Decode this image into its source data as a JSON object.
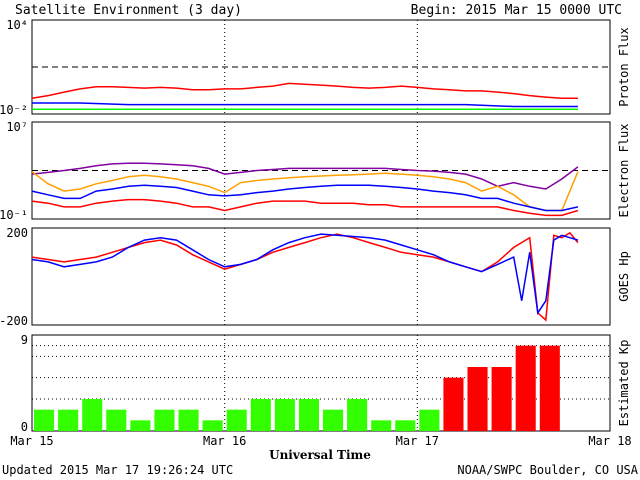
{
  "header": {
    "title": "Satellite Environment (3 day)",
    "begin": "Begin:  2015 Mar 15 0000 UTC"
  },
  "footer": {
    "updated": "Updated 2015 Mar 17 19:26:24 UTC",
    "credit": "NOAA/SWPC Boulder, CO USA"
  },
  "x_axis": {
    "label": "Universal Time",
    "ticks": [
      "Mar 15",
      "Mar 16",
      "Mar 17",
      "Mar 18"
    ]
  },
  "colors": {
    "red": "#ff0000",
    "blue": "#0000ff",
    "green": "#00ff00",
    "purple": "#8000a0",
    "orange": "#ffa000",
    "kp_green": "#33ff00",
    "kp_red": "#ff0000"
  },
  "chart_data": [
    {
      "type": "line",
      "ylabel": "Proton Flux",
      "ytick_labels": [
        "10⁴",
        "10⁻²"
      ],
      "yscale": "log",
      "ylim": [
        0.01,
        10000
      ],
      "threshold": 10,
      "xlim": [
        0,
        72
      ],
      "series": [
        {
          "color": "red",
          "x": [
            0,
            2,
            4,
            6,
            8,
            10,
            12,
            14,
            16,
            18,
            20,
            22,
            24,
            26,
            28,
            30,
            32,
            34,
            36,
            38,
            40,
            42,
            44,
            46,
            48,
            50,
            52,
            54,
            56,
            58,
            60,
            62,
            64,
            66,
            68
          ],
          "values": [
            0.1,
            0.15,
            0.25,
            0.4,
            0.55,
            0.55,
            0.5,
            0.45,
            0.5,
            0.45,
            0.35,
            0.35,
            0.4,
            0.4,
            0.5,
            0.6,
            0.9,
            0.8,
            0.7,
            0.6,
            0.5,
            0.45,
            0.5,
            0.6,
            0.5,
            0.4,
            0.35,
            0.3,
            0.3,
            0.25,
            0.2,
            0.15,
            0.12,
            0.1,
            0.1
          ]
        },
        {
          "color": "blue",
          "x": [
            0,
            6,
            12,
            18,
            24,
            30,
            36,
            42,
            48,
            54,
            60,
            66,
            68
          ],
          "values": [
            0.05,
            0.05,
            0.04,
            0.04,
            0.04,
            0.04,
            0.04,
            0.04,
            0.04,
            0.04,
            0.03,
            0.03,
            0.03
          ]
        },
        {
          "color": "green",
          "x": [
            0,
            6,
            12,
            18,
            24,
            30,
            36,
            42,
            48,
            54,
            60,
            66,
            68
          ],
          "values": [
            0.02,
            0.02,
            0.02,
            0.02,
            0.02,
            0.02,
            0.02,
            0.02,
            0.02,
            0.02,
            0.02,
            0.02,
            0.02
          ]
        }
      ]
    },
    {
      "type": "line",
      "ylabel": "Electron Flux",
      "ytick_labels": [
        "10⁷",
        "10⁻¹"
      ],
      "yscale": "log",
      "ylim": [
        0.1,
        10000000
      ],
      "threshold": 1000,
      "xlim": [
        0,
        72
      ],
      "series": [
        {
          "color": "purple",
          "x": [
            0,
            2,
            4,
            6,
            8,
            10,
            12,
            14,
            16,
            18,
            20,
            22,
            24,
            26,
            28,
            30,
            32,
            34,
            36,
            38,
            40,
            42,
            44,
            46,
            48,
            50,
            52,
            54,
            56,
            58,
            60,
            62,
            64,
            66,
            68
          ],
          "values": [
            500,
            700,
            1000,
            1500,
            2500,
            3500,
            4000,
            4000,
            3500,
            3000,
            2500,
            1500,
            500,
            700,
            1000,
            1200,
            1500,
            1500,
            1500,
            1500,
            1500,
            1500,
            1500,
            1200,
            1000,
            900,
            700,
            500,
            200,
            50,
            100,
            50,
            30,
            200,
            2000
          ]
        },
        {
          "color": "orange",
          "x": [
            0,
            2,
            4,
            6,
            8,
            10,
            12,
            14,
            16,
            18,
            20,
            22,
            24,
            26,
            28,
            30,
            32,
            34,
            36,
            38,
            40,
            42,
            44,
            46,
            48,
            50,
            52,
            54,
            56,
            58,
            60,
            62,
            64,
            66,
            68
          ],
          "values": [
            800,
            80,
            20,
            30,
            80,
            150,
            300,
            400,
            300,
            200,
            100,
            50,
            15,
            100,
            150,
            200,
            250,
            300,
            350,
            400,
            450,
            500,
            600,
            500,
            400,
            300,
            200,
            100,
            20,
            50,
            10,
            1,
            0.5,
            0.5,
            800
          ]
        },
        {
          "color": "blue",
          "x": [
            0,
            2,
            4,
            6,
            8,
            10,
            12,
            14,
            16,
            18,
            20,
            22,
            24,
            26,
            28,
            30,
            32,
            34,
            36,
            38,
            40,
            42,
            44,
            46,
            48,
            50,
            52,
            54,
            56,
            58,
            60,
            62,
            64,
            66,
            68
          ],
          "values": [
            20,
            10,
            5,
            5,
            20,
            30,
            50,
            60,
            50,
            40,
            20,
            10,
            8,
            10,
            15,
            20,
            30,
            40,
            50,
            60,
            60,
            60,
            50,
            40,
            30,
            20,
            15,
            10,
            5,
            5,
            2,
            1,
            0.5,
            0.5,
            1
          ]
        },
        {
          "color": "red",
          "x": [
            0,
            2,
            4,
            6,
            8,
            10,
            12,
            14,
            16,
            18,
            20,
            22,
            24,
            26,
            28,
            30,
            32,
            34,
            36,
            38,
            40,
            42,
            44,
            46,
            48,
            50,
            52,
            54,
            56,
            58,
            60,
            62,
            64,
            66,
            68
          ],
          "values": [
            3,
            2,
            1,
            1,
            2,
            3,
            4,
            4,
            3,
            2,
            1,
            1,
            0.5,
            1,
            2,
            3,
            3,
            3,
            2,
            2,
            2,
            1.5,
            1.5,
            1,
            1,
            1,
            1,
            1,
            1,
            1,
            0.5,
            0.3,
            0.2,
            0.2,
            0.5
          ]
        }
      ]
    },
    {
      "type": "line",
      "ylabel": "GOES Hp",
      "ytick_labels": [
        "200",
        "-200"
      ],
      "ylim": [
        -200,
        200
      ],
      "xlim": [
        0,
        72
      ],
      "series": [
        {
          "color": "red",
          "x": [
            0,
            2,
            4,
            6,
            8,
            10,
            12,
            14,
            16,
            18,
            20,
            22,
            24,
            26,
            28,
            30,
            32,
            34,
            36,
            38,
            40,
            42,
            44,
            46,
            48,
            50,
            52,
            54,
            56,
            58,
            60,
            62,
            63,
            64,
            65,
            66,
            67,
            68
          ],
          "values": [
            80,
            70,
            60,
            70,
            80,
            100,
            120,
            140,
            150,
            130,
            90,
            60,
            30,
            50,
            70,
            100,
            120,
            140,
            160,
            175,
            160,
            140,
            120,
            100,
            90,
            80,
            60,
            40,
            20,
            60,
            120,
            160,
            -150,
            -180,
            170,
            160,
            180,
            140
          ]
        },
        {
          "color": "blue",
          "x": [
            0,
            2,
            4,
            6,
            8,
            10,
            12,
            14,
            16,
            18,
            20,
            22,
            24,
            26,
            28,
            30,
            32,
            34,
            36,
            38,
            40,
            42,
            44,
            46,
            48,
            50,
            52,
            54,
            56,
            58,
            60,
            61,
            62,
            63,
            64,
            65,
            66,
            67,
            68
          ],
          "values": [
            70,
            60,
            40,
            50,
            60,
            80,
            120,
            150,
            160,
            150,
            110,
            70,
            40,
            50,
            70,
            110,
            140,
            160,
            175,
            170,
            165,
            160,
            150,
            130,
            110,
            90,
            60,
            40,
            20,
            50,
            80,
            -100,
            100,
            -150,
            -100,
            150,
            170,
            160,
            150
          ]
        }
      ]
    },
    {
      "type": "bar",
      "ylabel": "Estimated Kp",
      "ytick_labels": [
        "9",
        "0"
      ],
      "ylim": [
        0,
        9
      ],
      "xlim": [
        0,
        72
      ],
      "bar_width_hours": 3,
      "gridlines": [
        3,
        5,
        7,
        8
      ],
      "values": [
        2,
        2,
        3,
        2,
        1,
        2,
        2,
        1,
        2,
        3,
        3,
        3,
        2,
        3,
        1,
        1,
        2,
        5,
        6,
        6,
        8,
        8
      ],
      "colors": [
        "green",
        "green",
        "green",
        "green",
        "green",
        "green",
        "green",
        "green",
        "green",
        "green",
        "green",
        "green",
        "green",
        "green",
        "green",
        "green",
        "green",
        "red",
        "red",
        "red",
        "red",
        "red"
      ]
    }
  ]
}
